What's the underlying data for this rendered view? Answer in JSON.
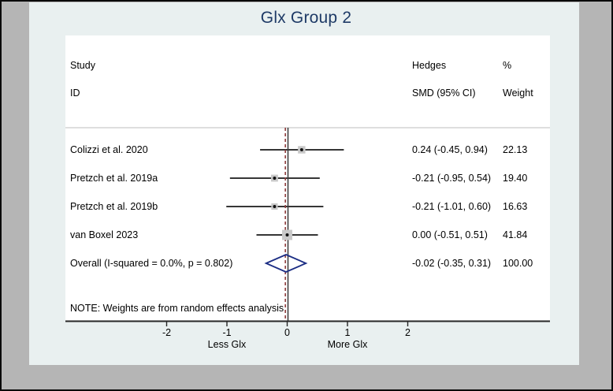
{
  "chart_data": {
    "type": "forest",
    "title": "Glx Group 2",
    "header": {
      "study": [
        "Study",
        "ID"
      ],
      "effect": [
        "Hedges",
        "SMD (95% CI)"
      ],
      "weight": [
        "%",
        "Weight"
      ]
    },
    "studies": [
      {
        "id": "Colizzi et al. 2020",
        "effect": 0.24,
        "ci_low": -0.45,
        "ci_high": 0.94,
        "weight": 22.13,
        "effect_label": "0.24 (-0.45, 0.94)",
        "weight_label": "22.13"
      },
      {
        "id": "Pretzch et al. 2019a",
        "effect": -0.21,
        "ci_low": -0.95,
        "ci_high": 0.54,
        "weight": 19.4,
        "effect_label": "-0.21 (-0.95, 0.54)",
        "weight_label": "19.40"
      },
      {
        "id": "Pretzch et al. 2019b",
        "effect": -0.21,
        "ci_low": -1.01,
        "ci_high": 0.6,
        "weight": 16.63,
        "effect_label": "-0.21 (-1.01, 0.60)",
        "weight_label": "16.63"
      },
      {
        "id": "van Boxel 2023",
        "effect": 0.0,
        "ci_low": -0.51,
        "ci_high": 0.51,
        "weight": 41.84,
        "effect_label": "0.00 (-0.51, 0.51)",
        "weight_label": "41.84"
      }
    ],
    "overall": {
      "id": "Overall  (I-squared = 0.0%, p = 0.802)",
      "effect": -0.02,
      "ci_low": -0.35,
      "ci_high": 0.31,
      "weight": 100.0,
      "effect_label": "-0.02 (-0.35, 0.31)",
      "weight_label": "100.00"
    },
    "note": "NOTE: Weights are from random effects analysis",
    "axis": {
      "ticks": [
        -2,
        -1,
        0,
        1,
        2
      ],
      "tick_labels": [
        "-2",
        "-1",
        "0",
        "1",
        "2"
      ],
      "left_label": "Less Glx",
      "right_label": "More Glx",
      "zero_line": 0
    },
    "colors": {
      "panel": "#e9f0f0",
      "frame_band": "#b5b5b5",
      "title": "#1e3a66",
      "diamond": "#1b2d84",
      "overall_dashed": "#8d3c3c",
      "zero_line": "#3f3f3f",
      "ci_line": "#1a1a1a",
      "marker_fill": "#c9c9c9",
      "marker_dot": "#111111",
      "separator": "#c9c9c9",
      "axis": "#262626"
    }
  }
}
